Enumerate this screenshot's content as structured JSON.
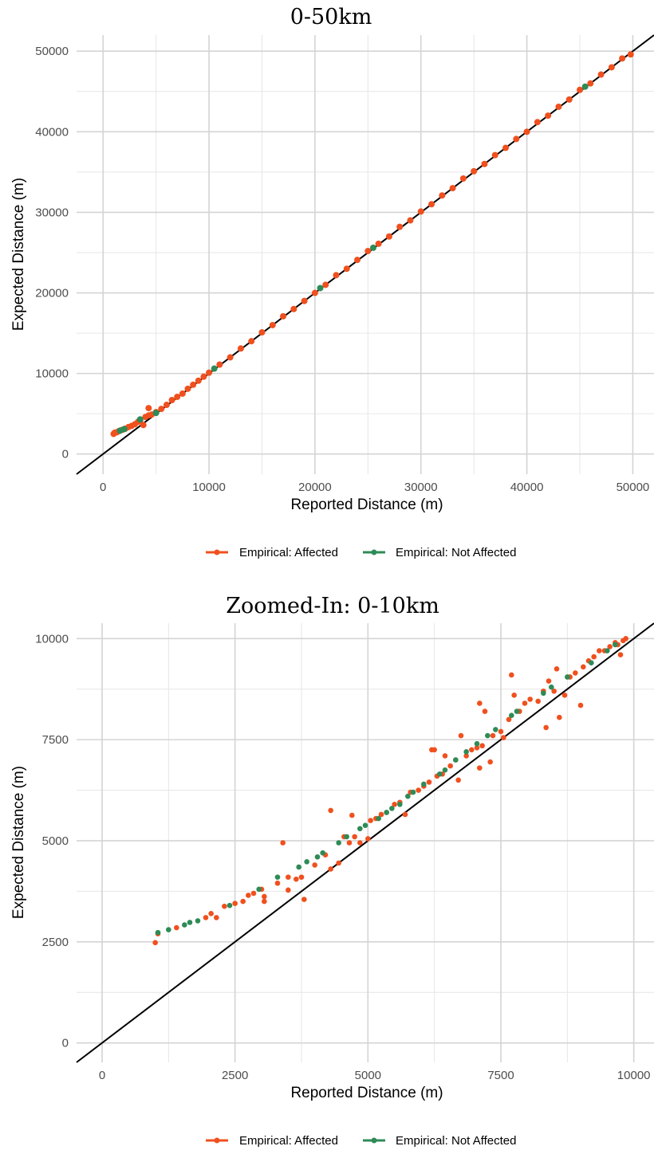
{
  "colors": {
    "affected": "#F0501E",
    "not_affected": "#2E8B57",
    "identity_line": "#000000",
    "grid": "#d4d4d4"
  },
  "chart_data": [
    {
      "type": "scatter",
      "title": "0-50km",
      "xlabel": "Reported Distance (m)",
      "ylabel": "Expected Distance (m)",
      "xlim": [
        -2500,
        52000
      ],
      "ylim": [
        -2500,
        52000
      ],
      "xticks": [
        0,
        10000,
        20000,
        30000,
        40000,
        50000
      ],
      "yticks": [
        0,
        10000,
        20000,
        30000,
        40000,
        50000
      ],
      "xtick_labels": [
        "0",
        "10000",
        "20000",
        "30000",
        "40000",
        "50000"
      ],
      "ytick_labels": [
        "0",
        "10000",
        "20000",
        "30000",
        "40000",
        "50000"
      ],
      "grid": true,
      "reference_line": {
        "type": "identity",
        "slope": 1,
        "intercept": 0
      },
      "legend": {
        "position": "bottom",
        "entries": [
          "Empirical: Affected",
          "Empirical: Not Affected"
        ]
      },
      "series": [
        {
          "name": "Empirical: Affected",
          "color": "#F0501E",
          "points": [
            [
              1000,
              2500
            ],
            [
              1100,
              2650
            ],
            [
              1300,
              2700
            ],
            [
              1500,
              2850
            ],
            [
              1800,
              3000
            ],
            [
              2100,
              3150
            ],
            [
              2400,
              3350
            ],
            [
              2700,
              3500
            ],
            [
              3000,
              3700
            ],
            [
              3300,
              4000
            ],
            [
              3500,
              4100
            ],
            [
              3800,
              3600
            ],
            [
              4000,
              4600
            ],
            [
              4300,
              4800
            ],
            [
              4300,
              5700
            ],
            [
              4600,
              4900
            ],
            [
              5000,
              5200
            ],
            [
              5500,
              5600
            ],
            [
              6000,
              6100
            ],
            [
              6500,
              6700
            ],
            [
              7000,
              7100
            ],
            [
              7500,
              7500
            ],
            [
              8000,
              8100
            ],
            [
              8500,
              8600
            ],
            [
              9000,
              9100
            ],
            [
              9500,
              9600
            ],
            [
              10000,
              10100
            ],
            [
              11000,
              11100
            ],
            [
              12000,
              12000
            ],
            [
              13000,
              13100
            ],
            [
              14000,
              14000
            ],
            [
              15000,
              15100
            ],
            [
              16000,
              16000
            ],
            [
              17000,
              17100
            ],
            [
              18000,
              18000
            ],
            [
              19000,
              19000
            ],
            [
              20000,
              20000
            ],
            [
              21000,
              21000
            ],
            [
              22000,
              22200
            ],
            [
              23000,
              23000
            ],
            [
              24000,
              24100
            ],
            [
              25000,
              25200
            ],
            [
              26000,
              26100
            ],
            [
              27000,
              27000
            ],
            [
              28000,
              28200
            ],
            [
              29000,
              29000
            ],
            [
              30000,
              30100
            ],
            [
              31000,
              31000
            ],
            [
              32000,
              32100
            ],
            [
              33000,
              33000
            ],
            [
              34000,
              34200
            ],
            [
              35000,
              35100
            ],
            [
              36000,
              36000
            ],
            [
              37000,
              37100
            ],
            [
              38000,
              38000
            ],
            [
              39000,
              39100
            ],
            [
              40000,
              40000
            ],
            [
              41000,
              41200
            ],
            [
              42000,
              42000
            ],
            [
              43000,
              43100
            ],
            [
              44000,
              44000
            ],
            [
              45000,
              45200
            ],
            [
              46000,
              46000
            ],
            [
              47000,
              47100
            ],
            [
              48000,
              48000
            ],
            [
              49000,
              49100
            ],
            [
              49800,
              49600
            ]
          ]
        },
        {
          "name": "Empirical: Not Affected",
          "color": "#2E8B57",
          "points": [
            [
              1600,
              2900
            ],
            [
              2000,
              3100
            ],
            [
              3500,
              4300
            ],
            [
              5000,
              5100
            ],
            [
              10500,
              10600
            ],
            [
              20500,
              20600
            ],
            [
              25500,
              25600
            ],
            [
              45500,
              45600
            ]
          ]
        }
      ]
    },
    {
      "type": "scatter",
      "title": "Zoomed-In: 0-10km",
      "xlabel": "Reported Distance (m)",
      "ylabel": "Expected Distance (m)",
      "xlim": [
        -480,
        10380
      ],
      "ylim": [
        -480,
        10380
      ],
      "xticks": [
        0,
        2500,
        5000,
        7500,
        10000
      ],
      "yticks": [
        0,
        2500,
        5000,
        7500,
        10000
      ],
      "xtick_labels": [
        "0",
        "2500",
        "5000",
        "7500",
        "10000"
      ],
      "ytick_labels": [
        "0",
        "2500",
        "5000",
        "7500",
        "10000"
      ],
      "grid": true,
      "reference_line": {
        "type": "identity",
        "slope": 1,
        "intercept": 0
      },
      "legend": {
        "position": "bottom",
        "entries": [
          "Empirical: Affected",
          "Empirical: Not Affected"
        ]
      },
      "series": [
        {
          "name": "Empirical: Affected",
          "color": "#F0501E",
          "points": [
            [
              1000,
              2480
            ],
            [
              1050,
              2700
            ],
            [
              1400,
              2850
            ],
            [
              1950,
              3100
            ],
            [
              2050,
              3200
            ],
            [
              2150,
              3100
            ],
            [
              2300,
              3380
            ],
            [
              2500,
              3450
            ],
            [
              2650,
              3500
            ],
            [
              2750,
              3650
            ],
            [
              2850,
              3700
            ],
            [
              3000,
              3800
            ],
            [
              3050,
              3620
            ],
            [
              3050,
              3500
            ],
            [
              3300,
              3950
            ],
            [
              3400,
              4950
            ],
            [
              3500,
              3780
            ],
            [
              3500,
              4100
            ],
            [
              3650,
              4050
            ],
            [
              3750,
              4100
            ],
            [
              3800,
              3550
            ],
            [
              4000,
              4400
            ],
            [
              4200,
              4650
            ],
            [
              4300,
              5750
            ],
            [
              4300,
              4300
            ],
            [
              4450,
              4450
            ],
            [
              4550,
              5100
            ],
            [
              4650,
              4950
            ],
            [
              4700,
              5630
            ],
            [
              4750,
              5100
            ],
            [
              4850,
              4950
            ],
            [
              5000,
              5050
            ],
            [
              5050,
              5500
            ],
            [
              5150,
              5550
            ],
            [
              5250,
              5650
            ],
            [
              5350,
              5700
            ],
            [
              5500,
              5900
            ],
            [
              5600,
              5950
            ],
            [
              5700,
              5650
            ],
            [
              5800,
              6200
            ],
            [
              5950,
              6250
            ],
            [
              6050,
              6350
            ],
            [
              6150,
              6450
            ],
            [
              6200,
              7250
            ],
            [
              6250,
              7250
            ],
            [
              6300,
              6600
            ],
            [
              6400,
              6650
            ],
            [
              6450,
              7100
            ],
            [
              6550,
              6850
            ],
            [
              6650,
              7000
            ],
            [
              6700,
              6500
            ],
            [
              6750,
              7600
            ],
            [
              6850,
              7100
            ],
            [
              6950,
              7250
            ],
            [
              7050,
              7300
            ],
            [
              7100,
              6800
            ],
            [
              7100,
              8400
            ],
            [
              7150,
              7350
            ],
            [
              7200,
              8200
            ],
            [
              7300,
              6950
            ],
            [
              7350,
              7600
            ],
            [
              7500,
              7700
            ],
            [
              7550,
              7550
            ],
            [
              7650,
              8000
            ],
            [
              7700,
              9100
            ],
            [
              7750,
              8600
            ],
            [
              7850,
              8200
            ],
            [
              7950,
              8400
            ],
            [
              8050,
              8500
            ],
            [
              8200,
              8450
            ],
            [
              8300,
              8700
            ],
            [
              8350,
              7800
            ],
            [
              8400,
              8950
            ],
            [
              8500,
              8700
            ],
            [
              8550,
              9250
            ],
            [
              8600,
              8050
            ],
            [
              8700,
              8600
            ],
            [
              8800,
              9050
            ],
            [
              8900,
              9150
            ],
            [
              9000,
              8350
            ],
            [
              9050,
              9300
            ],
            [
              9150,
              9450
            ],
            [
              9250,
              9550
            ],
            [
              9350,
              9700
            ],
            [
              9450,
              9700
            ],
            [
              9550,
              9800
            ],
            [
              9650,
              9900
            ],
            [
              9700,
              9850
            ],
            [
              9750,
              9600
            ],
            [
              9800,
              9950
            ],
            [
              9850,
              10000
            ]
          ]
        },
        {
          "name": "Empirical: Not Affected",
          "color": "#2E8B57",
          "points": [
            [
              1050,
              2730
            ],
            [
              1250,
              2800
            ],
            [
              1550,
              2920
            ],
            [
              1650,
              2980
            ],
            [
              1800,
              3020
            ],
            [
              2400,
              3400
            ],
            [
              2950,
              3800
            ],
            [
              3300,
              4100
            ],
            [
              3700,
              4350
            ],
            [
              3850,
              4480
            ],
            [
              4050,
              4600
            ],
            [
              4150,
              4700
            ],
            [
              4450,
              4950
            ],
            [
              4600,
              5100
            ],
            [
              4850,
              5300
            ],
            [
              4950,
              5380
            ],
            [
              5200,
              5550
            ],
            [
              5350,
              5700
            ],
            [
              5450,
              5800
            ],
            [
              5600,
              5900
            ],
            [
              5750,
              6100
            ],
            [
              5850,
              6200
            ],
            [
              6050,
              6400
            ],
            [
              6350,
              6650
            ],
            [
              6450,
              6750
            ],
            [
              6650,
              7000
            ],
            [
              6850,
              7200
            ],
            [
              7050,
              7400
            ],
            [
              7250,
              7600
            ],
            [
              7400,
              7750
            ],
            [
              7700,
              8100
            ],
            [
              7800,
              8200
            ],
            [
              8300,
              8650
            ],
            [
              8450,
              8800
            ],
            [
              8750,
              9050
            ],
            [
              9200,
              9400
            ],
            [
              9500,
              9700
            ],
            [
              9650,
              9850
            ]
          ]
        }
      ]
    }
  ]
}
